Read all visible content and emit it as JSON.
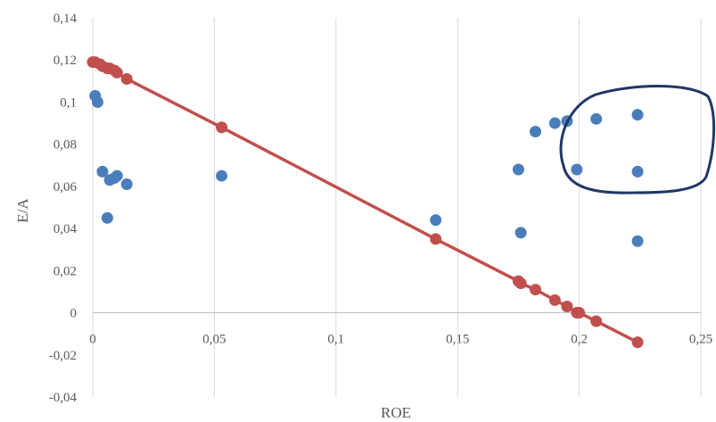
{
  "chart_data": {
    "type": "scatter",
    "xlabel": "ROE",
    "ylabel": "E/A",
    "xlim": [
      0,
      0.25
    ],
    "ylim": [
      -0.04,
      0.14
    ],
    "x_ticks": [
      "0",
      "0,05",
      "0,1",
      "0,15",
      "0,2",
      "0,25"
    ],
    "y_ticks": [
      "-0,04",
      "-0,02",
      "0",
      "0,02",
      "0,04",
      "0,06",
      "0,08",
      "0,1",
      "0,12",
      "0,14"
    ],
    "grid": "vertical",
    "series": [
      {
        "color": "#4a7ebb",
        "marker": "circle",
        "points": [
          [
            0.001,
            0.103
          ],
          [
            0.002,
            0.1
          ],
          [
            0.004,
            0.067
          ],
          [
            0.006,
            0.045
          ],
          [
            0.007,
            0.063
          ],
          [
            0.009,
            0.064
          ],
          [
            0.01,
            0.065
          ],
          [
            0.014,
            0.061
          ],
          [
            0.053,
            0.065
          ],
          [
            0.141,
            0.044
          ],
          [
            0.175,
            0.068
          ],
          [
            0.176,
            0.038
          ],
          [
            0.182,
            0.086
          ],
          [
            0.19,
            0.09
          ],
          [
            0.195,
            0.091
          ],
          [
            0.199,
            0.068
          ],
          [
            0.207,
            0.092
          ],
          [
            0.224,
            0.094
          ],
          [
            0.224,
            0.067
          ],
          [
            0.224,
            0.034
          ]
        ]
      },
      {
        "color": "#c0504d",
        "marker": "circle",
        "line": true,
        "points": [
          [
            0.0,
            0.119
          ],
          [
            0.001,
            0.119
          ],
          [
            0.003,
            0.118
          ],
          [
            0.004,
            0.117
          ],
          [
            0.006,
            0.116
          ],
          [
            0.007,
            0.116
          ],
          [
            0.009,
            0.115
          ],
          [
            0.01,
            0.114
          ],
          [
            0.014,
            0.111
          ],
          [
            0.053,
            0.088
          ],
          [
            0.141,
            0.035
          ],
          [
            0.175,
            0.015
          ],
          [
            0.176,
            0.014
          ],
          [
            0.182,
            0.011
          ],
          [
            0.19,
            0.006
          ],
          [
            0.195,
            0.003
          ],
          [
            0.199,
            0.0
          ],
          [
            0.2,
            0.0
          ],
          [
            0.207,
            -0.004
          ],
          [
            0.224,
            -0.014
          ]
        ]
      }
    ],
    "annotation": {
      "shape": "hand-drawn-loop",
      "color": "#1f3864"
    }
  }
}
